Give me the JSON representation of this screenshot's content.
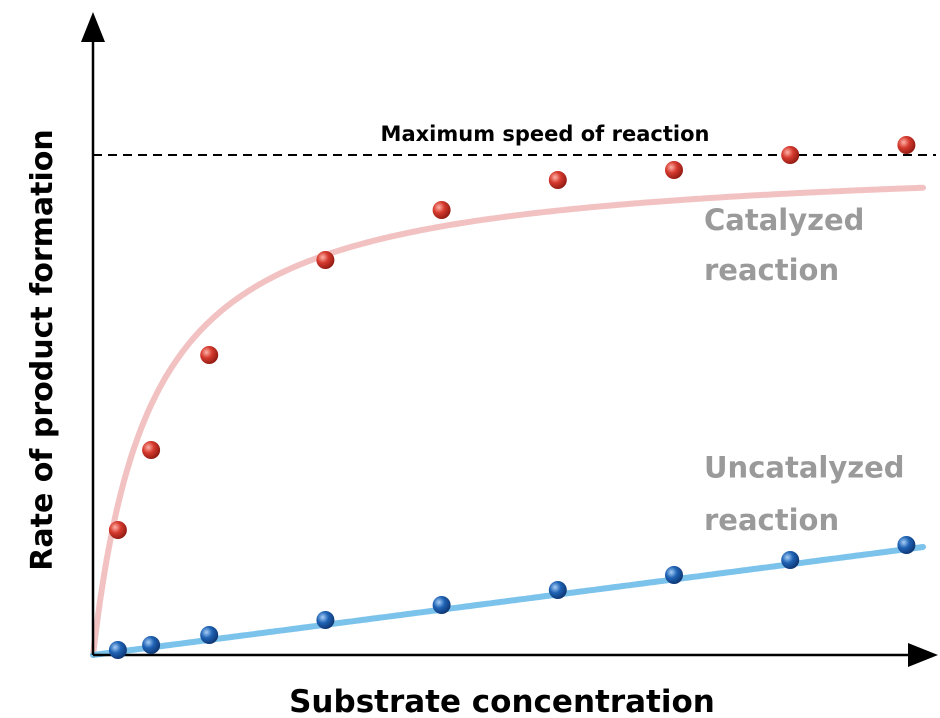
{
  "chart_data": {
    "type": "scatter",
    "title": "",
    "xlabel": "Substrate concentration",
    "ylabel": "Rate of product formation",
    "xlim": [
      0,
      10
    ],
    "ylim": [
      0,
      1.1
    ],
    "grid": false,
    "legend": "none",
    "max_line": {
      "y": 1.0,
      "label": "Maximum speed of reaction"
    },
    "series": [
      {
        "label_lines": [
          "Catalyzed",
          "reaction"
        ],
        "point_color": "#d63a2e",
        "curve_color": "#f2c2c2",
        "curve": {
          "kind": "michaelis-menten",
          "vmax": 1.0,
          "km": 0.7
        },
        "x": [
          0.3,
          0.7,
          1.4,
          2.8,
          4.2,
          5.6,
          7.0,
          8.4,
          9.8
        ],
        "y": [
          0.25,
          0.41,
          0.6,
          0.79,
          0.89,
          0.95,
          0.97,
          1.0,
          1.02
        ]
      },
      {
        "label_lines": [
          "Uncatalyzed",
          "reaction"
        ],
        "point_color": "#1f63b5",
        "curve_color": "#7cc3ec",
        "curve": {
          "kind": "linear",
          "slope": 0.0216,
          "intercept": 0
        },
        "x": [
          0.3,
          0.7,
          1.4,
          2.8,
          4.2,
          5.6,
          7.0,
          8.4,
          9.8
        ],
        "y": [
          0.01,
          0.02,
          0.04,
          0.07,
          0.1,
          0.13,
          0.16,
          0.19,
          0.22
        ]
      }
    ]
  }
}
